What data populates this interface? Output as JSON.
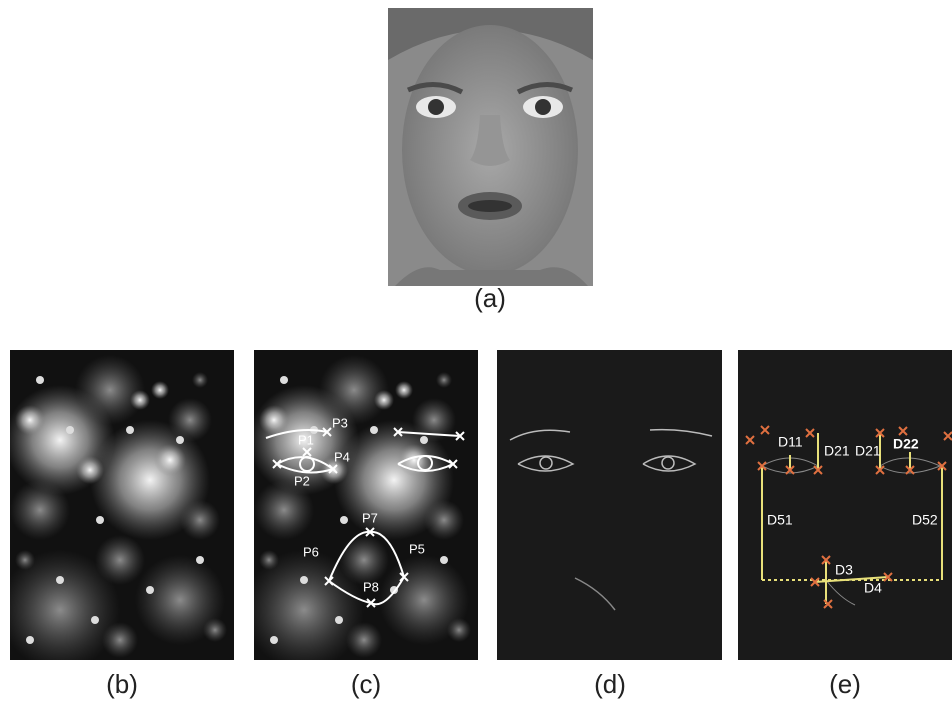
{
  "panels": [
    {
      "caption": "(a)"
    },
    {
      "caption": "(b)"
    },
    {
      "caption": "(c)"
    },
    {
      "caption": "(d)"
    },
    {
      "caption": "(e)"
    }
  ],
  "feature_points": [
    "P1",
    "P2",
    "P3",
    "P4",
    "P5",
    "P6",
    "P7",
    "P8"
  ],
  "distances": [
    "D11",
    "D21",
    "D21",
    "D22",
    "D51",
    "D52",
    "D3",
    "D4"
  ]
}
